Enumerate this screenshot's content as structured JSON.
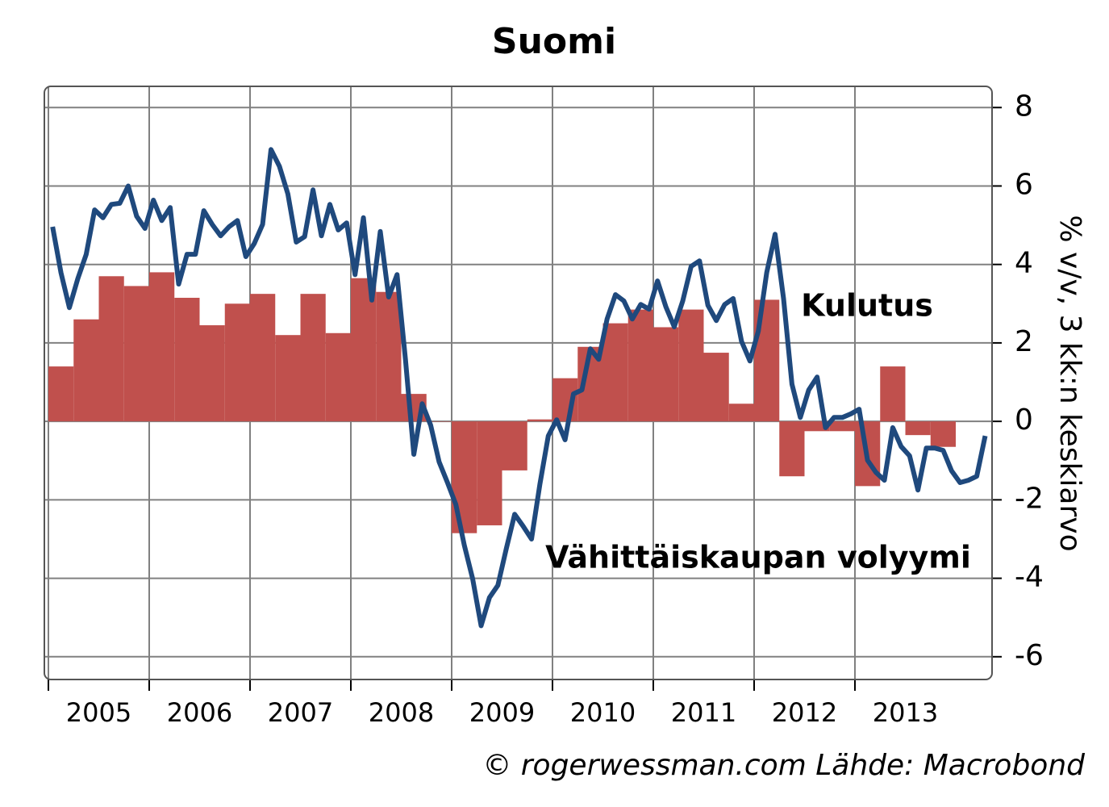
{
  "chart_data": {
    "type": "line",
    "title": "Suomi",
    "y_label": "% v/v, 3 kk:n keskiarvo",
    "source": "© rogerwessman.com Lähde: Macrobond",
    "xlim": [
      2004.96,
      2014.36
    ],
    "xticks": [
      2005,
      2006,
      2007,
      2008,
      2009,
      2010,
      2011,
      2012,
      2013
    ],
    "ylim": [
      -6.58,
      8.54
    ],
    "yticks": [
      8,
      6,
      4,
      2,
      0,
      -2,
      -4,
      -6
    ],
    "grid": true,
    "series": [
      {
        "name": "Kulutus",
        "type": "area",
        "color": "#c0504d",
        "x": [
          2005.125,
          2005.375,
          2005.625,
          2005.875,
          2006.125,
          2006.375,
          2006.625,
          2006.875,
          2007.125,
          2007.375,
          2007.625,
          2007.875,
          2008.125,
          2008.375,
          2008.625,
          2008.875,
          2009.125,
          2009.375,
          2009.625,
          2009.875,
          2010.125,
          2010.375,
          2010.625,
          2010.875,
          2011.125,
          2011.375,
          2011.625,
          2011.875,
          2012.125,
          2012.375,
          2012.625,
          2012.875,
          2013.125,
          2013.375,
          2013.625,
          2013.875
        ],
        "values": [
          1.4,
          2.6,
          3.7,
          3.45,
          3.8,
          3.15,
          2.45,
          3.0,
          3.25,
          2.2,
          3.25,
          2.25,
          3.65,
          3.3,
          0.7,
          0.0,
          -2.85,
          -2.65,
          -1.25,
          0.05,
          1.1,
          1.9,
          2.5,
          2.85,
          2.4,
          2.85,
          1.75,
          0.45,
          3.1,
          -1.4,
          -0.25,
          -0.25,
          -1.65,
          1.4,
          -0.35,
          -0.65
        ]
      },
      {
        "name": "Vähittäiskaupan volyymi",
        "type": "line",
        "color": "#1f497d",
        "x": [
          2005.042,
          2005.125,
          2005.208,
          2005.292,
          2005.375,
          2005.458,
          2005.542,
          2005.625,
          2005.708,
          2005.792,
          2005.875,
          2005.958,
          2006.042,
          2006.125,
          2006.208,
          2006.292,
          2006.375,
          2006.458,
          2006.542,
          2006.625,
          2006.708,
          2006.792,
          2006.875,
          2006.958,
          2007.042,
          2007.125,
          2007.208,
          2007.292,
          2007.375,
          2007.458,
          2007.542,
          2007.625,
          2007.708,
          2007.792,
          2007.875,
          2007.958,
          2008.042,
          2008.125,
          2008.208,
          2008.292,
          2008.375,
          2008.458,
          2008.542,
          2008.625,
          2008.708,
          2008.792,
          2008.875,
          2008.958,
          2009.042,
          2009.125,
          2009.208,
          2009.292,
          2009.375,
          2009.458,
          2009.542,
          2009.625,
          2009.708,
          2009.792,
          2009.875,
          2009.958,
          2010.042,
          2010.125,
          2010.208,
          2010.292,
          2010.375,
          2010.458,
          2010.542,
          2010.625,
          2010.708,
          2010.792,
          2010.875,
          2010.958,
          2011.042,
          2011.125,
          2011.208,
          2011.292,
          2011.375,
          2011.458,
          2011.542,
          2011.625,
          2011.708,
          2011.792,
          2011.875,
          2011.958,
          2012.042,
          2012.125,
          2012.208,
          2012.292,
          2012.375,
          2012.458,
          2012.542,
          2012.625,
          2012.708,
          2012.792,
          2012.875,
          2012.958,
          2013.042,
          2013.125,
          2013.208,
          2013.292,
          2013.375,
          2013.458,
          2013.542,
          2013.625,
          2013.708,
          2013.792,
          2013.875,
          2013.958,
          2014.042,
          2014.125,
          2014.208,
          2014.292
        ],
        "values": [
          4.96,
          3.79,
          2.9,
          3.64,
          4.26,
          5.39,
          5.19,
          5.53,
          5.56,
          6.0,
          5.23,
          4.92,
          5.64,
          5.12,
          5.45,
          3.5,
          4.26,
          4.26,
          5.37,
          5.02,
          4.73,
          4.96,
          5.12,
          4.2,
          4.53,
          5.02,
          6.93,
          6.5,
          5.8,
          4.57,
          4.71,
          5.9,
          4.73,
          5.53,
          4.88,
          5.06,
          3.74,
          5.19,
          3.09,
          4.84,
          3.17,
          3.74,
          1.58,
          -0.84,
          0.45,
          -0.1,
          -1.03,
          -1.56,
          -2.12,
          -3.15,
          -4.01,
          -5.21,
          -4.49,
          -4.18,
          -3.25,
          -2.37,
          -2.67,
          -3.0,
          -1.6,
          -0.37,
          0.04,
          -0.47,
          0.7,
          0.8,
          1.85,
          1.58,
          2.61,
          3.23,
          3.07,
          2.61,
          2.98,
          2.86,
          3.58,
          2.92,
          2.41,
          3.07,
          3.95,
          4.09,
          2.96,
          2.57,
          2.98,
          3.13,
          2.04,
          1.54,
          2.3,
          3.79,
          4.77,
          3.13,
          0.95,
          0.1,
          0.8,
          1.13,
          -0.16,
          0.1,
          0.1,
          0.19,
          0.31,
          -0.99,
          -1.3,
          -1.5,
          -0.16,
          -0.64,
          -0.88,
          -1.75,
          -0.68,
          -0.68,
          -0.74,
          -1.26,
          -1.56,
          -1.5,
          -1.4,
          -0.37
        ]
      }
    ]
  }
}
